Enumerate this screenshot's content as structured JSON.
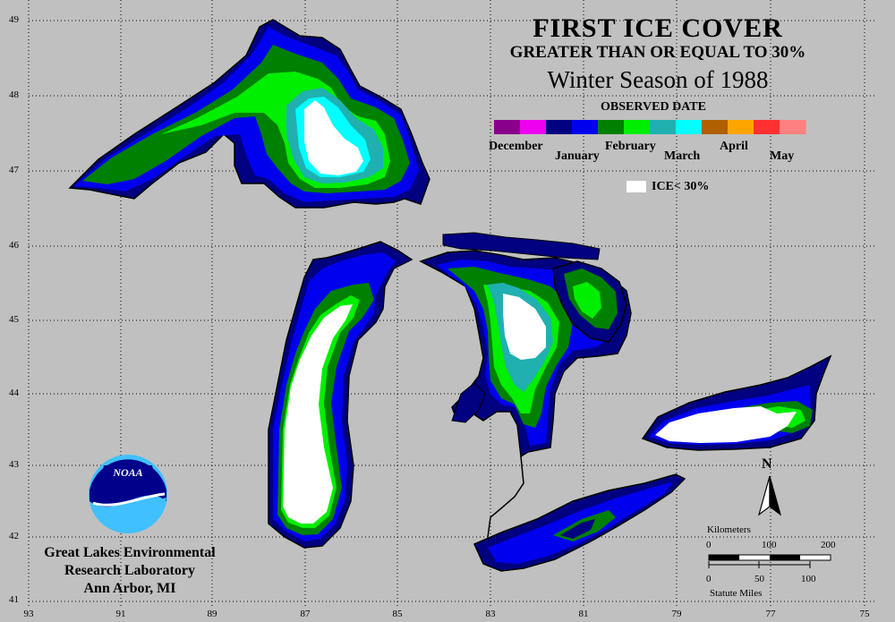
{
  "title": {
    "line1": "FIRST ICE COVER",
    "line2": "GREATER THAN OR EQUAL TO 30%",
    "line3": "Winter Season of 1988",
    "legend_heading": "OBSERVED DATE"
  },
  "legend": {
    "months": [
      "December",
      "January",
      "February",
      "March",
      "April",
      "May"
    ],
    "ramp_colors": [
      "#8b008b",
      "#ee00ee",
      "#000080",
      "#0000ee",
      "#008000",
      "#00ee00",
      "#20b0b0",
      "#00ffff",
      "#b06000",
      "#ffa500",
      "#ff3030",
      "#ff8080"
    ],
    "ice_label": "ICE< 30%",
    "ice_color": "#ffffff"
  },
  "latitude_labels": [
    "49",
    "48",
    "47",
    "46",
    "45",
    "44",
    "43",
    "42",
    "41"
  ],
  "longitude_labels": [
    "93",
    "91",
    "89",
    "87",
    "85",
    "83",
    "81",
    "79",
    "77",
    "75"
  ],
  "credit": {
    "line1": "Great Lakes Environmental",
    "line2": "Research Laboratory",
    "line3": "Ann Arbor, MI",
    "logo_text": "NOAA"
  },
  "scale_bar": {
    "km_title": "Kilometers",
    "km_ticks": [
      "0",
      "100",
      "200"
    ],
    "mi_ticks": [
      "0",
      "50",
      "100"
    ],
    "mi_title": "Statute Miles"
  },
  "north_arrow": {
    "label": "N"
  },
  "colors": {
    "background": "#c0c0c0",
    "shore": "#000000",
    "jan_dark": "#000080",
    "jan_blue": "#0000ee",
    "feb_green": "#008000",
    "feb_light": "#00ee00",
    "mar_teal": "#20b0b0",
    "mar_cyan": "#00ffff",
    "no_ice": "#ffffff"
  }
}
